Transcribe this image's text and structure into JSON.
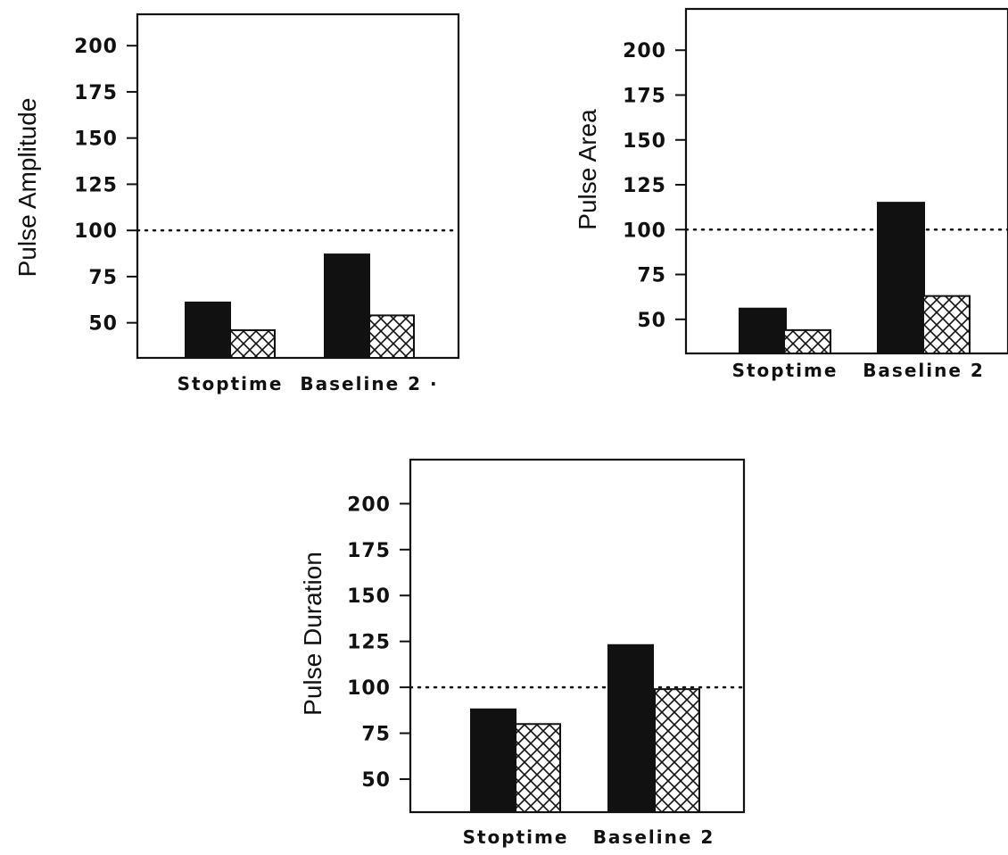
{
  "chart_data": [
    {
      "type": "bar",
      "ylabel": "Pulse Amplitude",
      "xlabel": "",
      "categories": [
        "Stoptime",
        "Baseline 2 ·"
      ],
      "yticks": [
        50,
        75,
        100,
        125,
        150,
        175,
        200
      ],
      "ylim": [
        31,
        217
      ],
      "reference_line": 100,
      "series": [
        {
          "values": [
            61,
            87
          ],
          "fill": "solid"
        },
        {
          "values": [
            46,
            54
          ],
          "fill": "crosshatch"
        }
      ]
    },
    {
      "type": "bar",
      "ylabel": "Pulse Area",
      "xlabel": "",
      "categories": [
        "Stoptime",
        "Baseline 2"
      ],
      "yticks": [
        50,
        75,
        100,
        125,
        150,
        175,
        200
      ],
      "ylim": [
        31,
        223
      ],
      "reference_line": 100,
      "series": [
        {
          "values": [
            56,
            115
          ],
          "fill": "solid"
        },
        {
          "values": [
            44,
            63
          ],
          "fill": "crosshatch"
        }
      ]
    },
    {
      "type": "bar",
      "ylabel": "Pulse Duration",
      "xlabel": "",
      "categories": [
        "Stoptime",
        "Baseline 2"
      ],
      "yticks": [
        50,
        75,
        100,
        125,
        150,
        175,
        200
      ],
      "ylim": [
        32,
        224
      ],
      "reference_line": 100,
      "series": [
        {
          "values": [
            88,
            123
          ],
          "fill": "solid"
        },
        {
          "values": [
            80,
            99
          ],
          "fill": "crosshatch"
        }
      ]
    }
  ]
}
